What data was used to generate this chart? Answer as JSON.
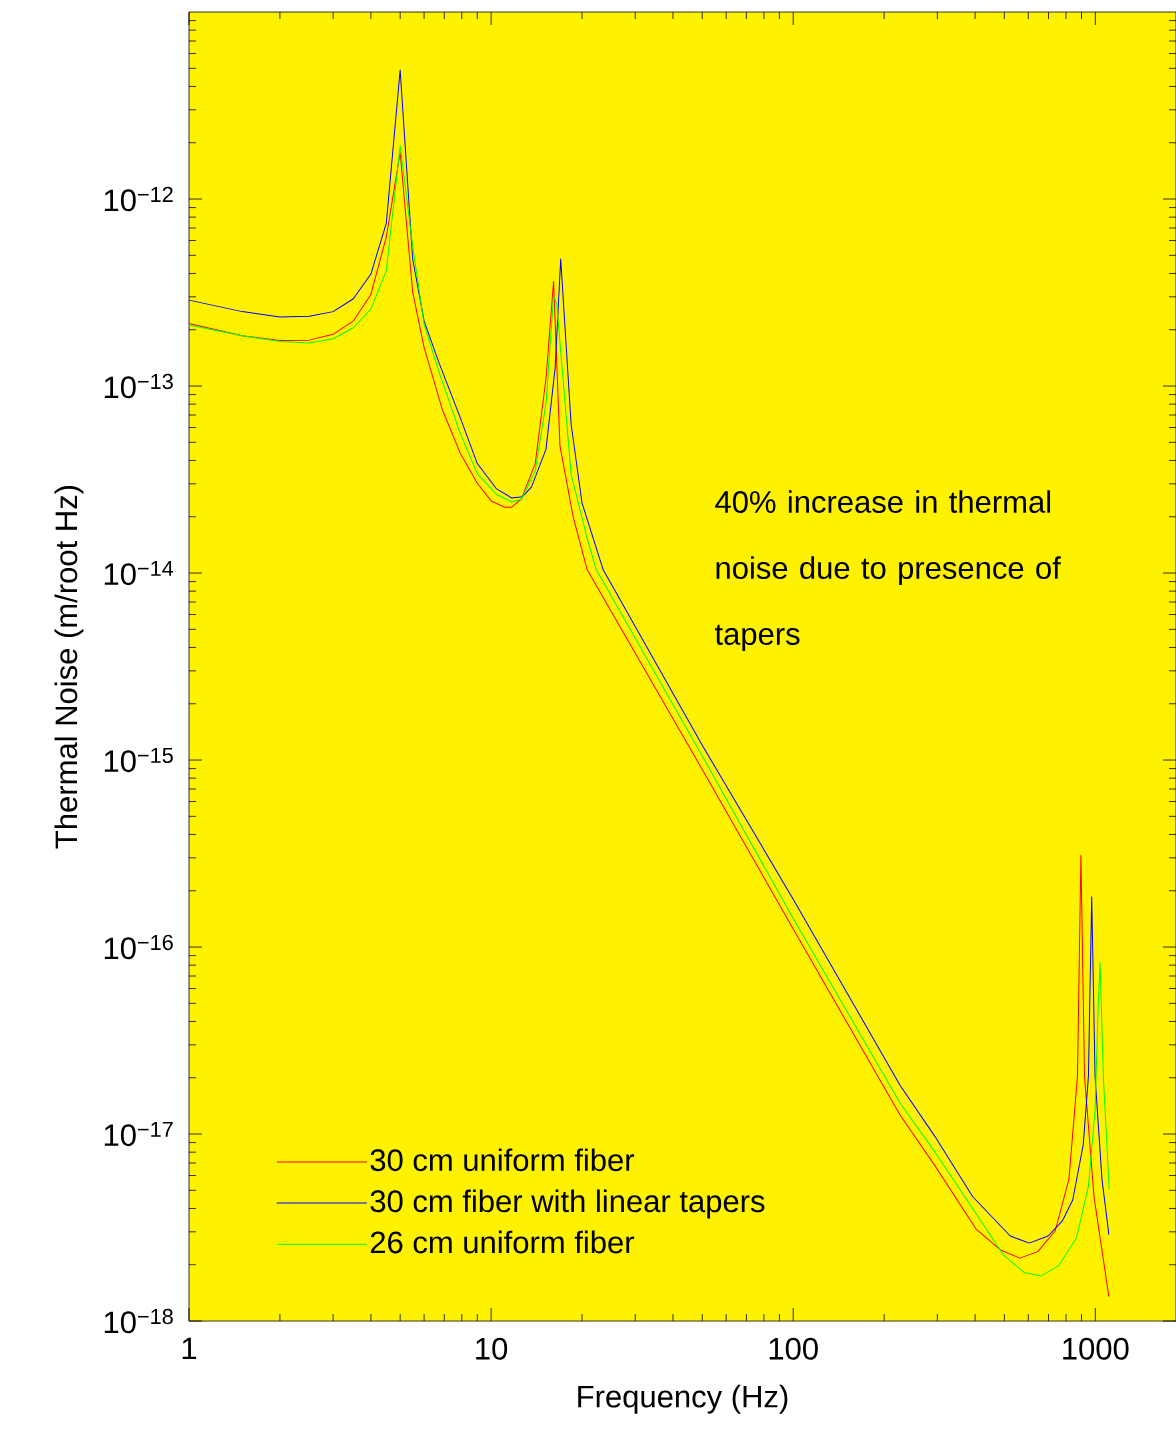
{
  "chart_data": {
    "type": "line",
    "xlabel": "Frequency (Hz)",
    "ylabel": "Thermal Noise (m/root Hz)",
    "log": "xy",
    "xlim": [
      1,
      1850
    ],
    "ylim": [
      1e-18,
      1e-11
    ],
    "xticks": [
      1,
      10,
      100,
      1000
    ],
    "yticks": [
      {
        "value": 1e-18,
        "label": "10$^{−18}$"
      },
      {
        "value": 1e-17,
        "label": "10$^{−17}$"
      },
      {
        "value": 1e-16,
        "label": "10$^{−16}$"
      },
      {
        "value": 1e-15,
        "label": "10$^{−15}$"
      },
      {
        "value": 1e-14,
        "label": "10$^{−14}$"
      },
      {
        "value": 1e-13,
        "label": "10$^{−13}$"
      },
      {
        "value": 1e-12,
        "label": "10$^{−12}$"
      }
    ],
    "legend": "bottom left",
    "annotations": [
      "40% increase in thermal noise due to presence of tapers"
    ],
    "series": [
      {
        "name": "30 cm uniform fiber",
        "color": "#ff0000",
        "x": [
          1,
          1.5,
          2,
          2.5,
          3,
          3.5,
          4,
          4.5,
          5,
          5.5,
          6,
          6.9,
          7.9,
          9,
          10,
          11.1,
          11.7,
          12.6,
          14,
          15.2,
          16.1,
          16.9,
          18.7,
          20.8,
          50,
          100,
          226,
          294,
          404,
          485,
          563,
          645,
          736,
          818,
          873,
          896,
          921,
          990,
          1109
        ],
        "values": [
          2.16e-13,
          1.86e-13,
          1.75e-13,
          1.76e-13,
          1.89e-13,
          2.23e-13,
          3.09e-13,
          6.28e-13,
          1.77e-12,
          3.19e-13,
          1.61e-13,
          7.45e-14,
          4.39e-14,
          3.02e-14,
          2.43e-14,
          2.25e-14,
          2.25e-14,
          2.49e-14,
          3.85e-14,
          1.1e-13,
          3.62e-13,
          4.8e-14,
          1.99e-14,
          1.04e-14,
          8.9e-16,
          1.25e-16,
          1.26e-17,
          6.8e-18,
          3.09e-18,
          2.4e-18,
          2.17e-18,
          2.35e-18,
          3.03e-18,
          5.74e-18,
          2.04e-17,
          3.1e-16,
          2.04e-17,
          4.63e-18,
          1.35e-18
        ]
      },
      {
        "name": "30 cm fiber with linear tapers",
        "color": "#0000ff",
        "x": [
          1,
          1.5,
          2,
          2.5,
          3,
          3.5,
          4,
          4.5,
          5,
          5.5,
          6,
          6.7,
          7.9,
          9,
          10.4,
          11.7,
          12.7,
          13.6,
          15.2,
          16.3,
          17,
          18.4,
          20,
          23.5,
          50,
          100,
          226,
          294,
          393,
          523,
          604,
          698,
          778,
          842,
          912,
          949,
          973,
          998,
          1052,
          1109
        ],
        "values": [
          2.88e-13,
          2.5e-13,
          2.34e-13,
          2.36e-13,
          2.5e-13,
          2.93e-13,
          3.97e-13,
          7.44e-13,
          4.9e-12,
          4.78e-13,
          2.23e-13,
          1.35e-13,
          6.8e-14,
          3.85e-14,
          2.83e-14,
          2.52e-14,
          2.56e-14,
          2.88e-14,
          4.6e-14,
          1.26e-13,
          4.78e-13,
          6.27e-14,
          2.37e-14,
          1.04e-14,
          1.2e-15,
          1.8e-16,
          1.82e-17,
          9.75e-18,
          4.62e-18,
          2.85e-18,
          2.61e-18,
          2.85e-18,
          3.43e-18,
          4.44e-18,
          8.75e-18,
          2.04e-17,
          1.86e-16,
          2.04e-17,
          5.74e-18,
          2.9e-18
        ]
      },
      {
        "name": "26 cm uniform fiber",
        "color": "#00ff00",
        "x": [
          1,
          1.5,
          2,
          2.5,
          3,
          3.5,
          4,
          4.5,
          5,
          5.5,
          6,
          6.7,
          7.9,
          9,
          10.4,
          11.7,
          12.6,
          14,
          15.2,
          16.1,
          16.5,
          18.4,
          20.8,
          22.3,
          50,
          100,
          226,
          294,
          404,
          497,
          581,
          660,
          757,
          866,
          949,
          998,
          1022,
          1037,
          1063,
          1112
        ],
        "values": [
          2.12e-13,
          1.86e-13,
          1.73e-13,
          1.7e-13,
          1.79e-13,
          2.05e-13,
          2.58e-13,
          4.14e-13,
          1.93e-12,
          5.62e-13,
          2.14e-13,
          1.21e-13,
          5.6e-14,
          3.4e-14,
          2.64e-14,
          2.4e-14,
          2.48e-14,
          3.53e-14,
          8.1e-14,
          3.04e-13,
          2.72e-13,
          3.38e-14,
          1.53e-14,
          1.04e-14,
          1.05e-15,
          1.42e-16,
          1.46e-17,
          8.05e-18,
          3.74e-18,
          2.25e-18,
          1.82e-18,
          1.74e-18,
          1.98e-18,
          2.78e-18,
          5.27e-18,
          1.34e-17,
          4.77e-17,
          8.3e-17,
          2.04e-17,
          5.04e-18
        ]
      }
    ]
  }
}
